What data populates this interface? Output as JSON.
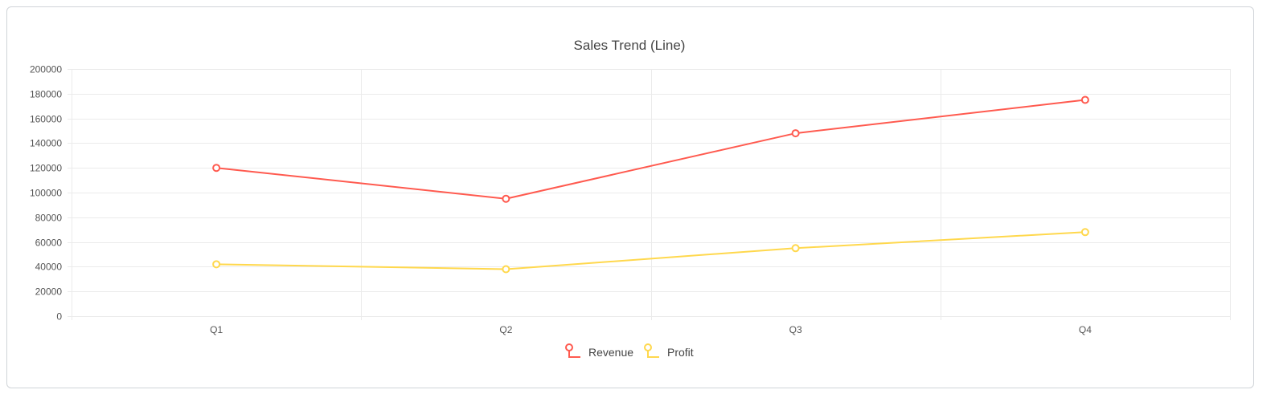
{
  "colors": {
    "revenue": "#ff5a4f",
    "profit": "#ffd84d",
    "grid": "#ebebeb",
    "text": "#444444",
    "background": "#ffffff"
  },
  "chart_data": {
    "type": "line",
    "title": "Sales Trend (Line)",
    "categories": [
      "Q1",
      "Q2",
      "Q3",
      "Q4"
    ],
    "series": [
      {
        "name": "Revenue",
        "values": [
          120000,
          95000,
          148000,
          175000
        ],
        "color": "#ff5a4f"
      },
      {
        "name": "Profit",
        "values": [
          42000,
          38000,
          55000,
          68000
        ],
        "color": "#ffd84d"
      }
    ],
    "ylim": [
      0,
      200000
    ],
    "yticks": [
      "0",
      "20000",
      "40000",
      "60000",
      "80000",
      "100000",
      "120000",
      "140000",
      "160000",
      "180000",
      "200000"
    ],
    "grid": true,
    "legend": "bottom-center",
    "marker": "hollow-circle"
  }
}
